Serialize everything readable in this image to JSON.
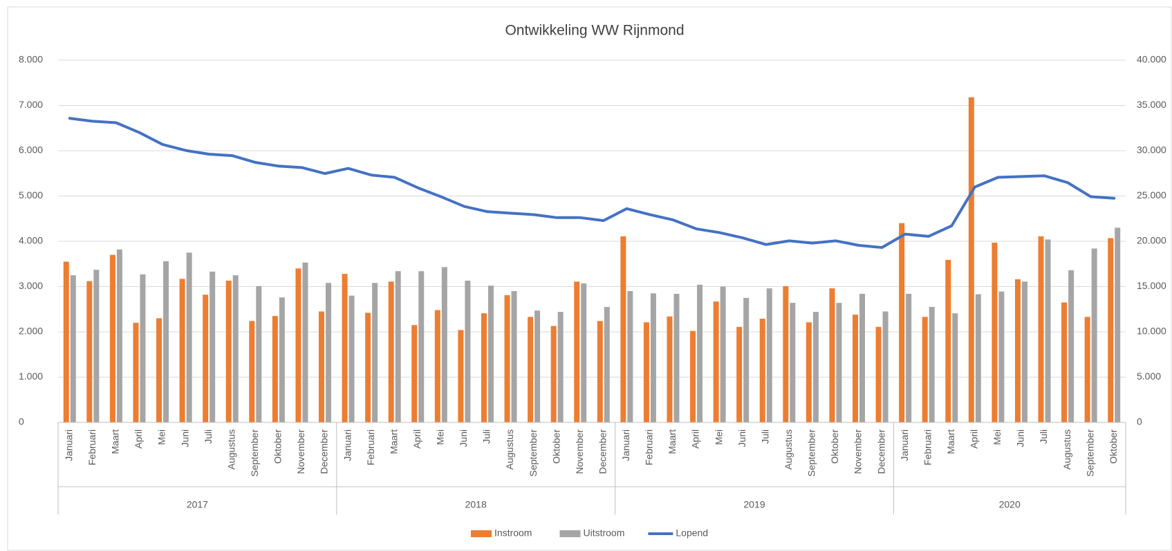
{
  "chart_data": {
    "type": "bar_line",
    "title": "Ontwikkeling WW Rijnmond",
    "categories": [
      "Januari",
      "Februari",
      "Maart",
      "April",
      "Mei",
      "Juni",
      "Juli",
      "Augustus",
      "September",
      "Oktober",
      "November",
      "December",
      "Januari",
      "Februari",
      "Maart",
      "April",
      "Mei",
      "Juni",
      "Juli",
      "Augustus",
      "September",
      "Oktober",
      "November",
      "December",
      "Januari",
      "Februari",
      "Maart",
      "April",
      "Mei",
      "Juni",
      "Juli",
      "Augustus",
      "September",
      "Oktober",
      "November",
      "December",
      "Januari",
      "Februari",
      "Maart",
      "April",
      "Mei",
      "Juni",
      "Juli",
      "Augustus",
      "September",
      "Oktober"
    ],
    "x_groups": [
      "2017",
      "2018",
      "2019",
      "2020"
    ],
    "series": [
      {
        "name": "Instroom",
        "type": "bar",
        "color": "#ed7d31",
        "values": [
          3550,
          3120,
          3700,
          2200,
          2300,
          3170,
          2820,
          3130,
          2240,
          2350,
          3400,
          2450,
          3280,
          2420,
          3110,
          2150,
          2480,
          2040,
          2410,
          2810,
          2330,
          2130,
          3110,
          2240,
          4110,
          2210,
          2340,
          2020,
          2670,
          2110,
          2290,
          3010,
          2210,
          2960,
          2380,
          2110,
          4400,
          2330,
          3590,
          7180,
          3970,
          3160,
          4110,
          2650,
          2330,
          4070
        ]
      },
      {
        "name": "Uitstroom",
        "type": "bar",
        "color": "#a5a5a5",
        "values": [
          3250,
          3370,
          3820,
          3270,
          3560,
          3750,
          3330,
          3250,
          3010,
          2760,
          3530,
          3080,
          2800,
          3080,
          3340,
          3340,
          3430,
          3130,
          3020,
          2900,
          2470,
          2440,
          3070,
          2550,
          2900,
          2850,
          2840,
          3040,
          3000,
          2750,
          2960,
          2640,
          2440,
          2640,
          2840,
          2450,
          2840,
          2550,
          2410,
          2830,
          2890,
          3110,
          4040,
          3360,
          3840,
          4300
        ]
      },
      {
        "name": "Lopend",
        "type": "line",
        "axis": "y2",
        "color": "#4472c4",
        "values": [
          33580,
          33250,
          33090,
          32010,
          30690,
          30030,
          29620,
          29460,
          28710,
          28300,
          28140,
          27480,
          28050,
          27310,
          27060,
          25910,
          24920,
          23850,
          23270,
          23100,
          22940,
          22610,
          22610,
          22280,
          23600,
          22940,
          22360,
          21370,
          20960,
          20380,
          19640,
          20050,
          19800,
          20050,
          19550,
          19310,
          20790,
          20540,
          21700,
          25990,
          27060,
          27150,
          27230,
          26480,
          24920,
          24750
        ]
      }
    ],
    "ylim": [
      0,
      8000
    ],
    "yticks": [
      0,
      {
        "value": 1000,
        "label": "1.000"
      },
      {
        "value": 2000,
        "label": "2.000"
      },
      {
        "value": 3000,
        "label": "3.000"
      },
      {
        "value": 4000,
        "label": "4.000"
      },
      {
        "value": 5000,
        "label": "5.000"
      },
      {
        "value": 6000,
        "label": "6.000"
      },
      {
        "value": 7000,
        "label": "7.000"
      },
      {
        "value": 8000,
        "label": "8.000"
      }
    ],
    "y2lim": [
      0,
      40000
    ],
    "y2ticks": [
      0,
      {
        "value": 5000,
        "label": "5.000"
      },
      {
        "value": 10000,
        "label": "10.000"
      },
      {
        "value": 15000,
        "label": "15.000"
      },
      {
        "value": 20000,
        "label": "20.000"
      },
      {
        "value": 25000,
        "label": "25.000"
      },
      {
        "value": 30000,
        "label": "30.000"
      },
      {
        "value": 35000,
        "label": "35.000"
      },
      {
        "value": 40000,
        "label": "40.000"
      }
    ],
    "grid": true,
    "legend": "bottom"
  }
}
